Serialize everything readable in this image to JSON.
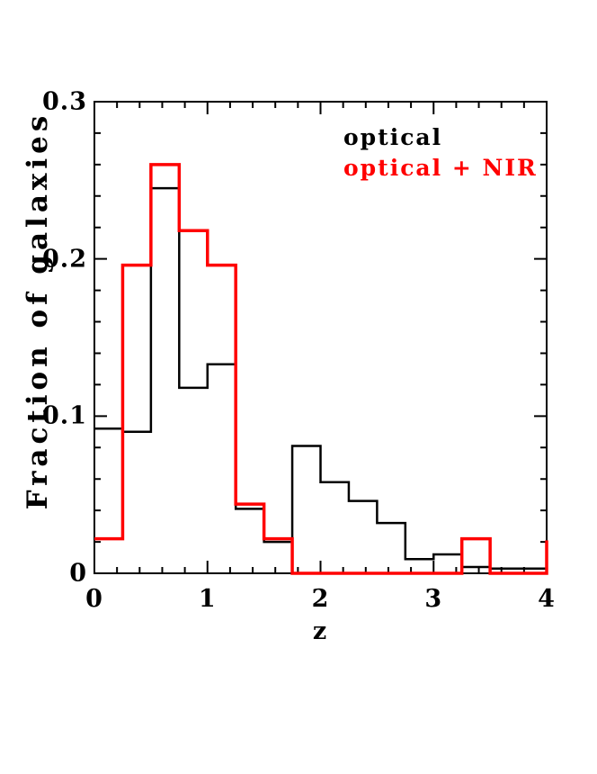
{
  "figure": {
    "background": "#ffffff",
    "frame_color": "#000000"
  },
  "chart_data": {
    "type": "step-histogram",
    "title": "",
    "xlabel": "z",
    "ylabel": "Fraction of galaxies",
    "xlim": [
      0,
      4
    ],
    "ylim": [
      0,
      0.3
    ],
    "grid": "off",
    "xticks": {
      "major": [
        0,
        1,
        2,
        3,
        4
      ],
      "labels": [
        "0",
        "1",
        "2",
        "3",
        "4"
      ],
      "minor_step": 0.2
    },
    "yticks": {
      "major": [
        0,
        0.1,
        0.2,
        0.3
      ],
      "labels": [
        "0",
        "0.1",
        "0.2",
        "0.3"
      ],
      "minor_step": 0.02
    },
    "bin_start": 0,
    "bin_width": 0.25,
    "series": [
      {
        "name": "optical",
        "color": "#000000",
        "values": [
          0.092,
          0.09,
          0.245,
          0.118,
          0.133,
          0.041,
          0.02,
          0.081,
          0.058,
          0.046,
          0.032,
          0.009,
          0.012,
          0.004,
          0.003,
          0.003
        ]
      },
      {
        "name": "optical + NIR",
        "color": "#ff0000",
        "values": [
          0.022,
          0.196,
          0.26,
          0.218,
          0.196,
          0.044,
          0.022,
          0,
          0,
          0,
          0,
          0,
          0,
          0.022,
          0,
          0
        ],
        "right_edge_spike": 0.021
      }
    ],
    "legend": {
      "position": "top-right",
      "items": [
        {
          "label": "optical",
          "color": "#000000"
        },
        {
          "label": "optical + NIR",
          "color": "#ff0000"
        }
      ]
    }
  }
}
